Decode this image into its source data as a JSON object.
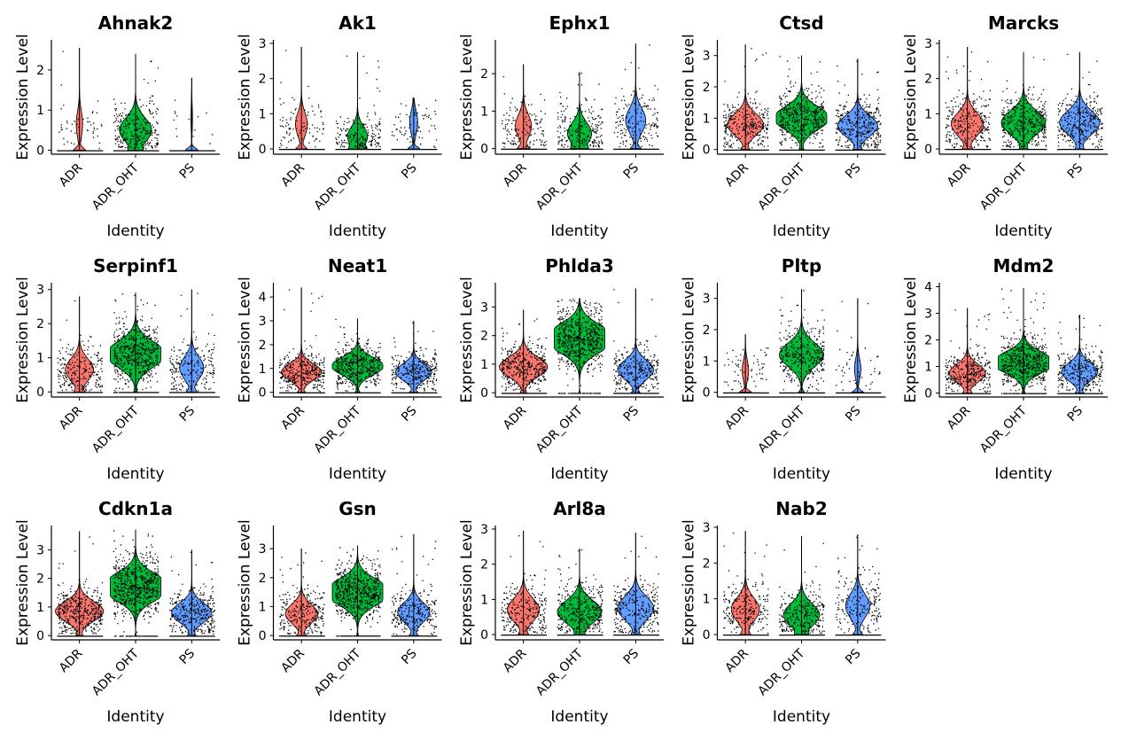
{
  "colors": {
    "ADR": "#f8766d",
    "ADR_OHT": "#00ba38",
    "PS": "#619cff"
  },
  "chart_data": [
    {
      "type": "violin",
      "title": "Ahnak2",
      "xlabel": "Identity",
      "ylabel": "Expression Level",
      "categories": [
        "ADR",
        "ADR_OHT",
        "PS"
      ],
      "ylim": [
        -0.1,
        2.75
      ],
      "yticks": [
        0,
        1,
        2
      ],
      "series": [
        {
          "name": "ADR",
          "zero_frac": 0.92,
          "mode": 0.65,
          "max": 2.55
        },
        {
          "name": "ADR_OHT",
          "zero_frac": 0.6,
          "mode": 0.5,
          "max": 2.4
        },
        {
          "name": "PS",
          "zero_frac": 0.98,
          "mode": 0.8,
          "max": 1.8
        }
      ]
    },
    {
      "type": "violin",
      "title": "Ak1",
      "xlabel": "Identity",
      "ylabel": "Expression Level",
      "categories": [
        "ADR",
        "ADR_OHT",
        "PS"
      ],
      "ylim": [
        -0.15,
        3.1
      ],
      "yticks": [
        0,
        1,
        2,
        3
      ],
      "series": [
        {
          "name": "ADR",
          "zero_frac": 0.85,
          "mode": 0.7,
          "max": 2.9
        },
        {
          "name": "ADR_OHT",
          "zero_frac": 0.75,
          "mode": 0.35,
          "max": 2.75
        },
        {
          "name": "PS",
          "zero_frac": 0.9,
          "mode": 0.75,
          "max": 1.45
        }
      ]
    },
    {
      "type": "violin",
      "title": "Ephx1",
      "xlabel": "Identity",
      "ylabel": "Expression Level",
      "categories": [
        "ADR",
        "ADR_OHT",
        "PS"
      ],
      "ylim": [
        -0.15,
        2.9
      ],
      "yticks": [
        0,
        1,
        2
      ],
      "series": [
        {
          "name": "ADR",
          "zero_frac": 0.8,
          "mode": 0.6,
          "max": 2.25
        },
        {
          "name": "ADR_OHT",
          "zero_frac": 0.7,
          "mode": 0.4,
          "max": 2.05
        },
        {
          "name": "PS",
          "zero_frac": 0.75,
          "mode": 0.75,
          "max": 2.8
        }
      ]
    },
    {
      "type": "violin",
      "title": "Ctsd",
      "xlabel": "Identity",
      "ylabel": "Expression Level",
      "categories": [
        "ADR",
        "ADR_OHT",
        "PS"
      ],
      "ylim": [
        -0.15,
        3.5
      ],
      "yticks": [
        0,
        1,
        2,
        3
      ],
      "series": [
        {
          "name": "ADR",
          "zero_frac": 0.55,
          "mode": 0.8,
          "max": 3.35
        },
        {
          "name": "ADR_OHT",
          "zero_frac": 0.3,
          "mode": 1.0,
          "max": 3.0
        },
        {
          "name": "PS",
          "zero_frac": 0.5,
          "mode": 0.75,
          "max": 2.9
        }
      ]
    },
    {
      "type": "violin",
      "title": "Marcks",
      "xlabel": "Identity",
      "ylabel": "Expression Level",
      "categories": [
        "ADR",
        "ADR_OHT",
        "PS"
      ],
      "ylim": [
        -0.15,
        3.1
      ],
      "yticks": [
        0,
        1,
        2,
        3
      ],
      "series": [
        {
          "name": "ADR",
          "zero_frac": 0.6,
          "mode": 0.7,
          "max": 2.9
        },
        {
          "name": "ADR_OHT",
          "zero_frac": 0.45,
          "mode": 0.75,
          "max": 2.75
        },
        {
          "name": "PS",
          "zero_frac": 0.5,
          "mode": 0.75,
          "max": 2.75
        }
      ]
    },
    {
      "type": "violin",
      "title": "Serpinf1",
      "xlabel": "Identity",
      "ylabel": "Expression Level",
      "categories": [
        "ADR",
        "ADR_OHT",
        "PS"
      ],
      "ylim": [
        -0.15,
        3.2
      ],
      "yticks": [
        0,
        1,
        2,
        3
      ],
      "series": [
        {
          "name": "ADR",
          "zero_frac": 0.65,
          "mode": 0.65,
          "max": 2.8
        },
        {
          "name": "ADR_OHT",
          "zero_frac": 0.25,
          "mode": 1.1,
          "max": 2.9
        },
        {
          "name": "PS",
          "zero_frac": 0.7,
          "mode": 0.7,
          "max": 3.0
        }
      ]
    },
    {
      "type": "violin",
      "title": "Neat1",
      "xlabel": "Identity",
      "ylabel": "Expression Level",
      "categories": [
        "ADR",
        "ADR_OHT",
        "PS"
      ],
      "ylim": [
        -0.2,
        4.6
      ],
      "yticks": [
        0,
        1,
        2,
        3,
        4
      ],
      "series": [
        {
          "name": "ADR",
          "zero_frac": 0.5,
          "mode": 0.85,
          "max": 4.4
        },
        {
          "name": "ADR_OHT",
          "zero_frac": 0.35,
          "mode": 1.1,
          "max": 3.1
        },
        {
          "name": "PS",
          "zero_frac": 0.55,
          "mode": 0.85,
          "max": 3.0
        }
      ]
    },
    {
      "type": "violin",
      "title": "Phlda3",
      "xlabel": "Identity",
      "ylabel": "Expression Level",
      "categories": [
        "ADR",
        "ADR_OHT",
        "PS"
      ],
      "ylim": [
        -0.15,
        3.85
      ],
      "yticks": [
        0,
        1,
        2,
        3
      ],
      "series": [
        {
          "name": "ADR",
          "zero_frac": 0.4,
          "mode": 0.9,
          "max": 2.9
        },
        {
          "name": "ADR_OHT",
          "zero_frac": 0.1,
          "mode": 1.9,
          "max": 3.3
        },
        {
          "name": "PS",
          "zero_frac": 0.55,
          "mode": 0.8,
          "max": 3.65
        }
      ]
    },
    {
      "type": "violin",
      "title": "Pltp",
      "xlabel": "Identity",
      "ylabel": "Expression Level",
      "categories": [
        "ADR",
        "ADR_OHT",
        "PS"
      ],
      "ylim": [
        -0.15,
        3.5
      ],
      "yticks": [
        0,
        1,
        2,
        3
      ],
      "series": [
        {
          "name": "ADR",
          "zero_frac": 0.92,
          "mode": 0.7,
          "max": 1.85
        },
        {
          "name": "ADR_OHT",
          "zero_frac": 0.45,
          "mode": 1.2,
          "max": 3.3
        },
        {
          "name": "PS",
          "zero_frac": 0.92,
          "mode": 0.75,
          "max": 3.0
        }
      ]
    },
    {
      "type": "violin",
      "title": "Mdm2",
      "xlabel": "Identity",
      "ylabel": "Expression Level",
      "categories": [
        "ADR",
        "ADR_OHT",
        "PS"
      ],
      "ylim": [
        -0.15,
        4.15
      ],
      "yticks": [
        0,
        1,
        2,
        3,
        4
      ],
      "series": [
        {
          "name": "ADR",
          "zero_frac": 0.55,
          "mode": 0.75,
          "max": 3.2
        },
        {
          "name": "ADR_OHT",
          "zero_frac": 0.2,
          "mode": 1.15,
          "max": 3.95
        },
        {
          "name": "PS",
          "zero_frac": 0.55,
          "mode": 0.8,
          "max": 2.95
        }
      ]
    },
    {
      "type": "violin",
      "title": "Cdkn1a",
      "xlabel": "Identity",
      "ylabel": "Expression Level",
      "categories": [
        "ADR",
        "ADR_OHT",
        "PS"
      ],
      "ylim": [
        -0.15,
        3.85
      ],
      "yticks": [
        0,
        1,
        2,
        3
      ],
      "series": [
        {
          "name": "ADR",
          "zero_frac": 0.4,
          "mode": 0.85,
          "max": 3.65
        },
        {
          "name": "ADR_OHT",
          "zero_frac": 0.1,
          "mode": 1.7,
          "max": 3.7
        },
        {
          "name": "PS",
          "zero_frac": 0.5,
          "mode": 0.8,
          "max": 3.0
        }
      ]
    },
    {
      "type": "violin",
      "title": "Gsn",
      "xlabel": "Identity",
      "ylabel": "Expression Level",
      "categories": [
        "ADR",
        "ADR_OHT",
        "PS"
      ],
      "ylim": [
        -0.15,
        3.8
      ],
      "yticks": [
        0,
        1,
        2,
        3
      ],
      "series": [
        {
          "name": "ADR",
          "zero_frac": 0.6,
          "mode": 0.75,
          "max": 3.0
        },
        {
          "name": "ADR_OHT",
          "zero_frac": 0.15,
          "mode": 1.5,
          "max": 3.1
        },
        {
          "name": "PS",
          "zero_frac": 0.6,
          "mode": 0.8,
          "max": 3.5
        }
      ]
    },
    {
      "type": "violin",
      "title": "Arl8a",
      "xlabel": "Identity",
      "ylabel": "Expression Level",
      "categories": [
        "ADR",
        "ADR_OHT",
        "PS"
      ],
      "ylim": [
        -0.15,
        3.1
      ],
      "yticks": [
        0,
        1,
        2,
        3
      ],
      "series": [
        {
          "name": "ADR",
          "zero_frac": 0.6,
          "mode": 0.7,
          "max": 2.95
        },
        {
          "name": "ADR_OHT",
          "zero_frac": 0.45,
          "mode": 0.65,
          "max": 2.45
        },
        {
          "name": "PS",
          "zero_frac": 0.55,
          "mode": 0.75,
          "max": 2.9
        }
      ]
    },
    {
      "type": "violin",
      "title": "Nab2",
      "xlabel": "Identity",
      "ylabel": "Expression Level",
      "categories": [
        "ADR",
        "ADR_OHT",
        "PS"
      ],
      "ylim": [
        -0.15,
        3.05
      ],
      "yticks": [
        0,
        1,
        2,
        3
      ],
      "series": [
        {
          "name": "ADR",
          "zero_frac": 0.65,
          "mode": 0.7,
          "max": 2.9
        },
        {
          "name": "ADR_OHT",
          "zero_frac": 0.55,
          "mode": 0.55,
          "max": 2.75
        },
        {
          "name": "PS",
          "zero_frac": 0.7,
          "mode": 0.8,
          "max": 2.8
        }
      ]
    }
  ]
}
